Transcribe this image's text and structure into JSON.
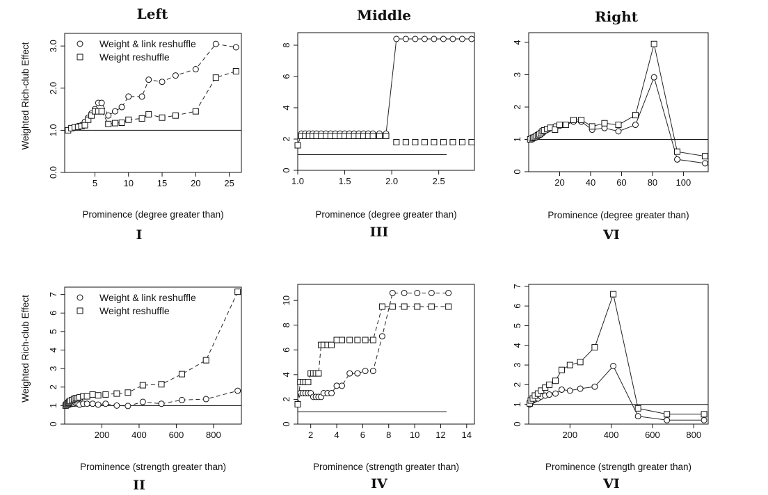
{
  "column_titles": [
    "Left",
    "Middle",
    "Right"
  ],
  "chart_data": [
    {
      "id": "I",
      "type": "scatter",
      "panel_label": "I",
      "xlabel": "Prominence (degree greater than)",
      "ylabel": "Weighted Rich-club Effect",
      "xlim": [
        0.5,
        26.8
      ],
      "ylim": [
        0,
        3.3
      ],
      "xticks": [
        5,
        10,
        15,
        20,
        25
      ],
      "yticks": [
        0.0,
        1.0,
        2.0,
        3.0
      ],
      "yticks_decimals": 1,
      "reference_y": 1,
      "legend": {
        "position": "top-left",
        "entries": [
          "Weight & link reshuffle",
          "Weight reshuffle"
        ]
      },
      "series": [
        {
          "name": "Weight & link reshuffle",
          "marker": "circle",
          "line": "dash",
          "x": [
            1,
            1.5,
            2,
            2.5,
            3,
            3.5,
            4,
            4.5,
            5,
            5.5,
            6,
            7,
            8,
            9,
            10,
            12,
            13,
            15,
            17,
            20,
            23,
            26
          ],
          "y": [
            1.0,
            1.05,
            1.07,
            1.1,
            1.12,
            1.2,
            1.3,
            1.4,
            1.5,
            1.65,
            1.65,
            1.35,
            1.45,
            1.55,
            1.8,
            1.8,
            2.2,
            2.15,
            2.3,
            2.45,
            3.05,
            2.97
          ]
        },
        {
          "name": "Weight reshuffle",
          "marker": "square",
          "line": "dash",
          "x": [
            1,
            1.5,
            2,
            2.5,
            3,
            3.5,
            4,
            4.5,
            5,
            5.5,
            6,
            7,
            8,
            9,
            10,
            12,
            13,
            15,
            17,
            20,
            23,
            26
          ],
          "y": [
            1.0,
            1.05,
            1.07,
            1.08,
            1.1,
            1.12,
            1.25,
            1.35,
            1.45,
            1.45,
            1.45,
            1.15,
            1.17,
            1.18,
            1.25,
            1.28,
            1.38,
            1.3,
            1.35,
            1.45,
            2.25,
            2.4
          ]
        }
      ]
    },
    {
      "id": "III",
      "type": "scatter",
      "panel_label": "III",
      "xlabel": "Prominence (degree greater than)",
      "ylabel": "",
      "xlim": [
        1.0,
        2.88
      ],
      "ylim": [
        0,
        8.8
      ],
      "xticks": [
        1.0,
        1.5,
        2.0,
        2.5
      ],
      "xticks_decimals": 1,
      "yticks": [
        0,
        2,
        4,
        6,
        8
      ],
      "reference_y": 1,
      "series": [
        {
          "name": "",
          "marker": "circle",
          "line": "solid",
          "x": [
            1.0,
            1.04,
            1.08,
            1.12,
            1.16,
            1.2,
            1.25,
            1.3,
            1.35,
            1.4,
            1.45,
            1.5,
            1.55,
            1.6,
            1.65,
            1.7,
            1.75,
            1.8,
            1.87,
            1.94,
            2.05,
            2.15,
            2.25,
            2.35,
            2.45,
            2.55,
            2.65,
            2.75,
            2.85
          ],
          "y": [
            1.6,
            2.35,
            2.35,
            2.35,
            2.35,
            2.35,
            2.35,
            2.35,
            2.35,
            2.35,
            2.35,
            2.35,
            2.35,
            2.35,
            2.35,
            2.35,
            2.35,
            2.35,
            2.35,
            2.35,
            8.4,
            8.4,
            8.4,
            8.4,
            8.4,
            8.4,
            8.4,
            8.4,
            8.4
          ]
        },
        {
          "name": "",
          "marker": "square",
          "line": "none",
          "x": [
            1.0,
            1.04,
            1.08,
            1.12,
            1.16,
            1.2,
            1.25,
            1.3,
            1.35,
            1.4,
            1.45,
            1.5,
            1.55,
            1.6,
            1.65,
            1.7,
            1.75,
            1.8,
            1.87,
            1.94,
            2.05,
            2.15,
            2.25,
            2.35,
            2.45,
            2.55,
            2.65,
            2.75,
            2.85
          ],
          "y": [
            1.6,
            2.2,
            2.2,
            2.2,
            2.2,
            2.2,
            2.2,
            2.2,
            2.2,
            2.2,
            2.2,
            2.2,
            2.2,
            2.2,
            2.2,
            2.2,
            2.2,
            2.2,
            2.2,
            2.2,
            1.8,
            1.8,
            1.8,
            1.8,
            1.8,
            1.8,
            1.8,
            1.8,
            1.8
          ]
        }
      ]
    },
    {
      "id": "VI-a",
      "type": "scatter",
      "panel_label": "VI",
      "xlabel": "Prominence (degree greater than)",
      "ylabel": "",
      "xlim": [
        0,
        116
      ],
      "ylim": [
        0,
        4.3
      ],
      "xticks": [
        20,
        40,
        60,
        80,
        100
      ],
      "yticks": [
        0,
        1,
        2,
        3,
        4
      ],
      "reference_y": 1,
      "series": [
        {
          "name": "",
          "marker": "circle",
          "line": "solid",
          "x": [
            1,
            2,
            3,
            4,
            5,
            6,
            7,
            8,
            9,
            10,
            12,
            14,
            17,
            20,
            24,
            29,
            34,
            41,
            49,
            58,
            69,
            81,
            96,
            114
          ],
          "y": [
            1.0,
            1.02,
            1.04,
            1.06,
            1.08,
            1.1,
            1.13,
            1.16,
            1.2,
            1.25,
            1.3,
            1.35,
            1.4,
            1.42,
            1.45,
            1.55,
            1.55,
            1.3,
            1.35,
            1.25,
            1.45,
            2.92,
            0.38,
            0.26
          ]
        },
        {
          "name": "",
          "marker": "square",
          "line": "solid",
          "x": [
            1,
            2,
            3,
            4,
            5,
            6,
            7,
            8,
            9,
            10,
            12,
            14,
            17,
            20,
            24,
            29,
            34,
            41,
            49,
            58,
            69,
            81,
            96,
            114
          ],
          "y": [
            1.0,
            1.03,
            1.05,
            1.07,
            1.1,
            1.13,
            1.16,
            1.2,
            1.25,
            1.28,
            1.32,
            1.36,
            1.3,
            1.45,
            1.45,
            1.6,
            1.6,
            1.4,
            1.5,
            1.45,
            1.75,
            3.95,
            0.62,
            0.48
          ]
        }
      ]
    },
    {
      "id": "II",
      "type": "scatter",
      "panel_label": "II",
      "xlabel": "Prominence (strength greater than)",
      "ylabel": "Weighted Rich-club Effect",
      "xlim": [
        0,
        950
      ],
      "ylim": [
        0,
        7.4
      ],
      "xticks": [
        200,
        400,
        600,
        800
      ],
      "yticks": [
        0,
        1,
        2,
        3,
        4,
        5,
        6,
        7
      ],
      "reference_y": 1,
      "legend": {
        "position": "top-left",
        "entries": [
          "Weight & link reshuffle",
          "Weight reshuffle"
        ]
      },
      "series": [
        {
          "name": "Weight & link reshuffle",
          "marker": "circle",
          "line": "dash",
          "x": [
            5,
            10,
            15,
            20,
            25,
            30,
            40,
            50,
            60,
            70,
            80,
            100,
            120,
            150,
            180,
            220,
            280,
            340,
            420,
            520,
            630,
            760,
            930
          ],
          "y": [
            1.0,
            1.02,
            1.04,
            1.06,
            1.05,
            1.08,
            1.1,
            1.1,
            1.12,
            1.1,
            1.05,
            1.1,
            1.1,
            1.1,
            1.05,
            1.1,
            1.0,
            0.98,
            1.2,
            1.1,
            1.3,
            1.35,
            1.8
          ]
        },
        {
          "name": "Weight reshuffle",
          "marker": "square",
          "line": "dash",
          "x": [
            5,
            10,
            15,
            20,
            25,
            30,
            40,
            50,
            60,
            70,
            80,
            100,
            120,
            150,
            180,
            220,
            280,
            340,
            420,
            520,
            630,
            760,
            930
          ],
          "y": [
            1.0,
            1.05,
            1.1,
            1.15,
            1.2,
            1.25,
            1.3,
            1.35,
            1.4,
            1.4,
            1.45,
            1.5,
            1.5,
            1.6,
            1.55,
            1.6,
            1.65,
            1.7,
            2.1,
            2.15,
            2.7,
            3.45,
            7.15
          ]
        }
      ]
    },
    {
      "id": "IV",
      "type": "scatter",
      "panel_label": "IV",
      "xlabel": "Prominence (strength greater than)",
      "ylabel": "",
      "xlim": [
        1.0,
        14.6
      ],
      "ylim": [
        0,
        11.3
      ],
      "xticks": [
        2,
        4,
        6,
        8,
        10,
        12,
        14
      ],
      "yticks": [
        0,
        2,
        4,
        6,
        8,
        10
      ],
      "reference_y": 1,
      "series": [
        {
          "name": "",
          "marker": "circle",
          "line": "dash",
          "x": [
            1.0,
            1.2,
            1.4,
            1.6,
            1.8,
            2.0,
            2.2,
            2.4,
            2.6,
            2.8,
            3.0,
            3.3,
            3.6,
            4.0,
            4.4,
            5.0,
            5.6,
            6.2,
            6.8,
            7.5,
            8.3,
            9.2,
            10.2,
            11.3,
            12.6
          ],
          "y": [
            1.6,
            2.5,
            2.5,
            2.5,
            2.5,
            2.5,
            2.2,
            2.2,
            2.2,
            2.2,
            2.5,
            2.5,
            2.5,
            3.1,
            3.1,
            4.1,
            4.1,
            4.3,
            4.3,
            7.1,
            10.6,
            10.6,
            10.6,
            10.6,
            10.6
          ]
        },
        {
          "name": "",
          "marker": "square",
          "line": "dash",
          "x": [
            1.0,
            1.2,
            1.4,
            1.6,
            1.8,
            2.0,
            2.2,
            2.4,
            2.6,
            2.8,
            3.0,
            3.3,
            3.6,
            4.0,
            4.4,
            5.0,
            5.6,
            6.2,
            6.8,
            7.5,
            8.3,
            9.2,
            10.2,
            11.3,
            12.6
          ],
          "y": [
            1.6,
            3.4,
            3.4,
            3.4,
            3.4,
            4.1,
            4.1,
            4.1,
            4.1,
            6.4,
            6.4,
            6.4,
            6.4,
            6.8,
            6.8,
            6.8,
            6.8,
            6.8,
            6.8,
            9.5,
            9.5,
            9.5,
            9.5,
            9.5,
            9.5
          ]
        }
      ]
    },
    {
      "id": "VI-b",
      "type": "scatter",
      "panel_label": "VI",
      "xlabel": "Prominence (strength greater than)",
      "ylabel": "",
      "xlim": [
        0,
        870
      ],
      "ylim": [
        0,
        7.1
      ],
      "xticks": [
        200,
        400,
        600,
        800
      ],
      "yticks": [
        0,
        1,
        2,
        3,
        4,
        5,
        6,
        7
      ],
      "reference_y": 1,
      "series": [
        {
          "name": "",
          "marker": "circle",
          "line": "solid",
          "x": [
            5,
            10,
            20,
            30,
            45,
            60,
            80,
            100,
            130,
            160,
            200,
            250,
            320,
            410,
            530,
            670,
            850
          ],
          "y": [
            1.0,
            1.1,
            1.2,
            1.25,
            1.3,
            1.4,
            1.45,
            1.5,
            1.55,
            1.75,
            1.7,
            1.8,
            1.9,
            2.95,
            0.4,
            0.2,
            0.2
          ]
        },
        {
          "name": "",
          "marker": "square",
          "line": "solid",
          "x": [
            5,
            10,
            20,
            30,
            45,
            60,
            80,
            100,
            130,
            160,
            200,
            250,
            320,
            410,
            530,
            670,
            850
          ],
          "y": [
            1.05,
            1.2,
            1.3,
            1.45,
            1.55,
            1.7,
            1.85,
            2.0,
            2.2,
            2.75,
            3.0,
            3.15,
            3.9,
            6.6,
            0.8,
            0.5,
            0.5
          ]
        }
      ]
    }
  ]
}
